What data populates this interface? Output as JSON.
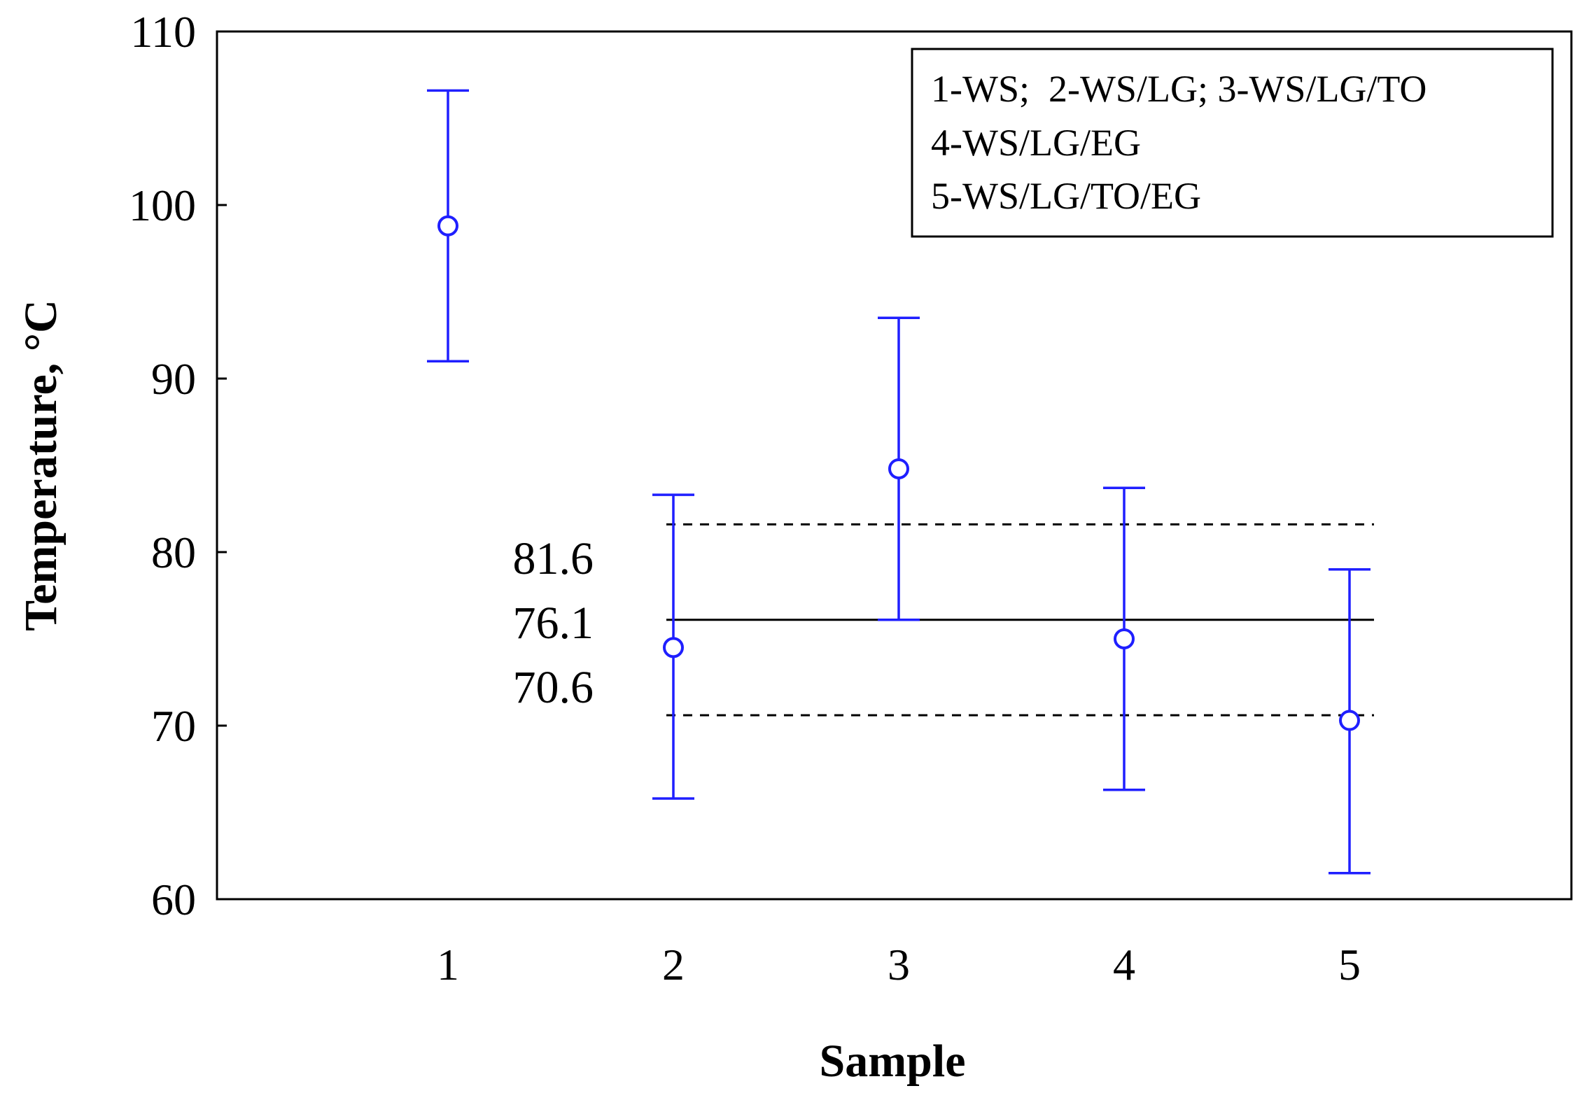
{
  "chart_data": {
    "type": "scatter",
    "title": "",
    "xlabel": "Sample",
    "ylabel": "Temperature, °C",
    "xlim": [
      0,
      6
    ],
    "ylim": [
      60,
      110
    ],
    "x_ticks": [
      "1",
      "2",
      "3",
      "4",
      "5"
    ],
    "y_ticks": [
      "60",
      "70",
      "80",
      "90",
      "100",
      "110"
    ],
    "grid": false,
    "legend_position": "top-right",
    "legend_lines": [
      "1-WS;  2-WS/LG; 3-WS/LG/TO",
      "4-WS/LG/EG",
      "5-WS/LG/TO/EG"
    ],
    "series": [
      {
        "x": [
          1,
          2,
          3,
          4,
          5
        ],
        "mean": [
          98.8,
          74.5,
          84.8,
          75.0,
          70.3
        ],
        "lower": [
          91.0,
          65.8,
          76.1,
          66.3,
          61.5
        ],
        "upper": [
          106.6,
          83.3,
          93.5,
          83.7,
          79.0
        ],
        "color": "#1f1fff",
        "marker": "open-circle"
      }
    ],
    "reference_lines": [
      {
        "label": "81.6",
        "value": 81.6,
        "style": "dashed"
      },
      {
        "label": "76.1",
        "value": 76.1,
        "style": "solid"
      },
      {
        "label": "70.6",
        "value": 70.6,
        "style": "dashed"
      }
    ]
  }
}
